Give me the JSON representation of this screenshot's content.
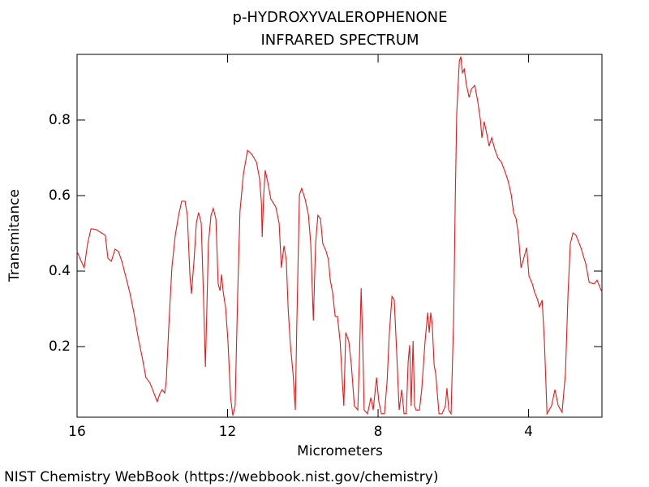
{
  "chart_data": {
    "type": "line",
    "title": "p-HYDROXYVALEROPHENONE",
    "subtitle": "INFRARED SPECTRUM",
    "x_label": "Micrometers",
    "y_label": "Transmitance",
    "source": "NIST Chemistry WebBook (https://webbook.nist.gov/chemistry)",
    "color": "#e41a1c",
    "xlim": [
      16,
      2.05
    ],
    "ylim": [
      0.013,
      0.974
    ],
    "xticks": [
      16,
      12,
      8,
      4
    ],
    "yticks": [
      0.2,
      0.4,
      0.6,
      0.8
    ],
    "x": [
      16.0,
      15.89,
      15.81,
      15.72,
      15.63,
      15.5,
      15.35,
      15.25,
      15.18,
      15.09,
      14.99,
      14.9,
      14.81,
      14.71,
      14.6,
      14.49,
      14.38,
      14.27,
      14.17,
      14.06,
      13.95,
      13.87,
      13.8,
      13.74,
      13.67,
      13.63,
      13.56,
      13.48,
      13.39,
      13.3,
      13.22,
      13.13,
      13.07,
      13.0,
      12.96,
      12.89,
      12.83,
      12.77,
      12.7,
      12.64,
      12.59,
      12.55,
      12.51,
      12.44,
      12.38,
      12.31,
      12.25,
      12.2,
      12.16,
      12.12,
      12.05,
      11.99,
      11.92,
      11.86,
      11.8,
      11.73,
      11.67,
      11.58,
      11.47,
      11.36,
      11.23,
      11.15,
      11.1,
      11.08,
      11.04,
      11.0,
      10.93,
      10.85,
      10.72,
      10.63,
      10.57,
      10.5,
      10.44,
      10.39,
      10.33,
      10.26,
      10.2,
      10.16,
      10.09,
      10.03,
      9.94,
      9.85,
      9.79,
      9.72,
      9.66,
      9.6,
      9.53,
      9.47,
      9.38,
      9.32,
      9.27,
      9.21,
      9.14,
      9.08,
      9.01,
      8.95,
      8.91,
      8.86,
      8.78,
      8.71,
      8.63,
      8.54,
      8.5,
      8.45,
      8.41,
      8.37,
      8.28,
      8.19,
      8.13,
      8.04,
      7.98,
      7.91,
      7.83,
      7.76,
      7.7,
      7.63,
      7.57,
      7.5,
      7.44,
      7.37,
      7.31,
      7.25,
      7.2,
      7.16,
      7.12,
      7.07,
      7.03,
      6.99,
      6.9,
      6.84,
      6.75,
      6.68,
      6.64,
      6.6,
      6.56,
      6.51,
      6.47,
      6.38,
      6.3,
      6.21,
      6.17,
      6.12,
      6.06,
      5.99,
      5.95,
      5.91,
      5.84,
      5.8,
      5.76,
      5.71,
      5.65,
      5.58,
      5.52,
      5.43,
      5.35,
      5.28,
      5.24,
      5.18,
      5.11,
      5.05,
      4.98,
      4.89,
      4.81,
      4.72,
      4.64,
      4.55,
      4.46,
      4.4,
      4.33,
      4.27,
      4.2,
      4.14,
      4.05,
      3.99,
      3.9,
      3.84,
      3.77,
      3.71,
      3.64,
      3.58,
      3.51,
      3.39,
      3.3,
      3.21,
      3.11,
      3.02,
      2.95,
      2.89,
      2.82,
      2.74,
      2.61,
      2.48,
      2.39,
      2.26,
      2.18,
      2.05
    ],
    "values": [
      0.452,
      0.426,
      0.409,
      0.473,
      0.512,
      0.51,
      0.501,
      0.495,
      0.434,
      0.426,
      0.458,
      0.452,
      0.426,
      0.387,
      0.344,
      0.29,
      0.226,
      0.172,
      0.118,
      0.103,
      0.075,
      0.054,
      0.075,
      0.086,
      0.077,
      0.108,
      0.258,
      0.409,
      0.495,
      0.548,
      0.585,
      0.585,
      0.548,
      0.387,
      0.34,
      0.43,
      0.527,
      0.555,
      0.527,
      0.333,
      0.146,
      0.301,
      0.473,
      0.548,
      0.566,
      0.538,
      0.366,
      0.348,
      0.391,
      0.348,
      0.301,
      0.215,
      0.065,
      0.017,
      0.043,
      0.344,
      0.559,
      0.656,
      0.72,
      0.71,
      0.688,
      0.645,
      0.581,
      0.49,
      0.602,
      0.667,
      0.634,
      0.591,
      0.57,
      0.527,
      0.409,
      0.467,
      0.43,
      0.301,
      0.204,
      0.129,
      0.032,
      0.258,
      0.602,
      0.619,
      0.591,
      0.548,
      0.473,
      0.269,
      0.473,
      0.548,
      0.538,
      0.473,
      0.452,
      0.43,
      0.376,
      0.344,
      0.28,
      0.28,
      0.215,
      0.108,
      0.043,
      0.237,
      0.215,
      0.151,
      0.043,
      0.032,
      0.151,
      0.355,
      0.215,
      0.032,
      0.022,
      0.065,
      0.032,
      0.118,
      0.054,
      0.022,
      0.022,
      0.108,
      0.237,
      0.333,
      0.323,
      0.172,
      0.032,
      0.086,
      0.022,
      0.022,
      0.161,
      0.204,
      0.043,
      0.215,
      0.043,
      0.032,
      0.032,
      0.086,
      0.215,
      0.29,
      0.237,
      0.29,
      0.258,
      0.151,
      0.129,
      0.022,
      0.022,
      0.043,
      0.09,
      0.032,
      0.022,
      0.28,
      0.581,
      0.817,
      0.957,
      0.968,
      0.925,
      0.935,
      0.892,
      0.86,
      0.882,
      0.892,
      0.849,
      0.8,
      0.753,
      0.796,
      0.763,
      0.731,
      0.753,
      0.72,
      0.699,
      0.688,
      0.667,
      0.641,
      0.602,
      0.555,
      0.538,
      0.495,
      0.409,
      0.43,
      0.462,
      0.387,
      0.366,
      0.344,
      0.327,
      0.305,
      0.323,
      0.215,
      0.022,
      0.043,
      0.086,
      0.043,
      0.026,
      0.129,
      0.344,
      0.473,
      0.501,
      0.495,
      0.462,
      0.419,
      0.37,
      0.366,
      0.376,
      0.344
    ]
  }
}
